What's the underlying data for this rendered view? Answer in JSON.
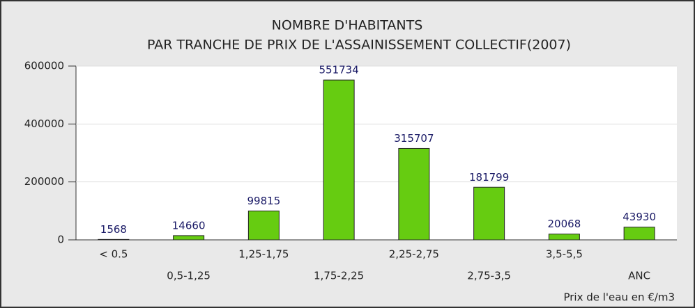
{
  "chart_data": {
    "type": "bar",
    "title": "NOMBRE D'HABITANTS",
    "subtitle": "PAR TRANCHE DE PRIX DE L'ASSAINISSEMENT COLLECTIF(2007)",
    "x_label": "Prix de l'eau en €/m3",
    "categories": [
      "< 0.5",
      "0,5-1,25",
      "1,25-1,75",
      "1,75-2,25",
      "2,25-2,75",
      "2,75-3,5",
      "3,5-5,5",
      "ANC"
    ],
    "values": [
      1568,
      14660,
      99815,
      551734,
      315707,
      181799,
      20068,
      43930
    ],
    "color": "#66cc11",
    "ylim": [
      0,
      600000
    ],
    "yticks": [
      0,
      200000,
      400000,
      600000
    ],
    "grid": true
  }
}
